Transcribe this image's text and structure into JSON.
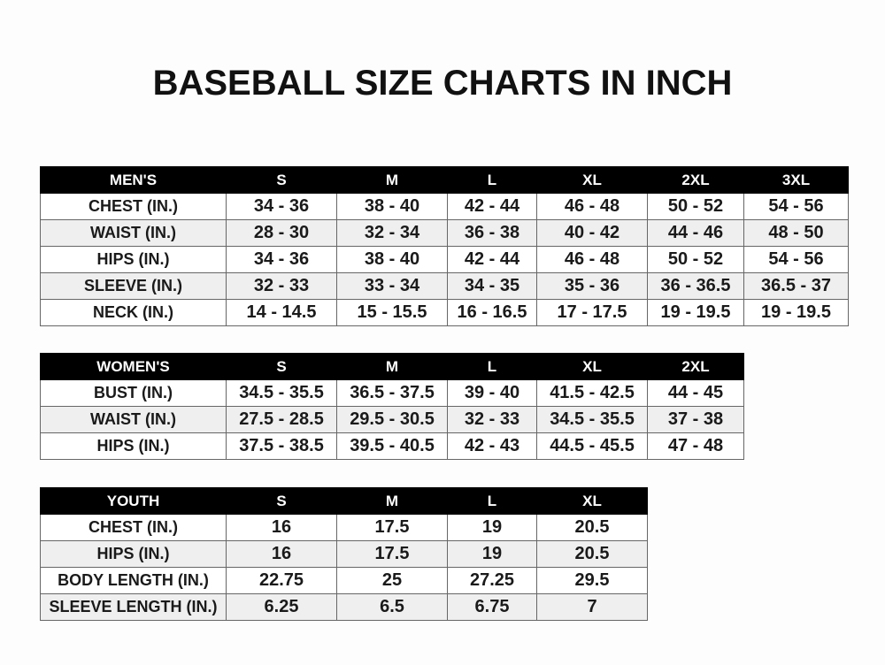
{
  "title": "BASEBALL SIZE CHARTS IN INCH",
  "tables": [
    {
      "id": "men",
      "headers": [
        "MEN'S",
        "S",
        "M",
        "L",
        "XL",
        "2XL",
        "3XL"
      ],
      "rows": [
        [
          "CHEST (IN.)",
          "34 - 36",
          "38 - 40",
          "42 - 44",
          "46 - 48",
          "50 - 52",
          "54 - 56"
        ],
        [
          "WAIST (IN.)",
          "28 - 30",
          "32 - 34",
          "36 - 38",
          "40 - 42",
          "44 - 46",
          "48 - 50"
        ],
        [
          "HIPS (IN.)",
          "34 - 36",
          "38 - 40",
          "42 - 44",
          "46 - 48",
          "50 - 52",
          "54 - 56"
        ],
        [
          "SLEEVE (IN.)",
          "32 - 33",
          "33 - 34",
          "34 - 35",
          "35 - 36",
          "36 - 36.5",
          "36.5 - 37"
        ],
        [
          "NECK (IN.)",
          "14 - 14.5",
          "15 - 15.5",
          "16 - 16.5",
          "17 - 17.5",
          "19 - 19.5",
          "19 - 19.5"
        ]
      ]
    },
    {
      "id": "women",
      "headers": [
        "WOMEN'S",
        "S",
        "M",
        "L",
        "XL",
        "2XL"
      ],
      "rows": [
        [
          "BUST (IN.)",
          "34.5 - 35.5",
          "36.5 - 37.5",
          "39 - 40",
          "41.5 - 42.5",
          "44 - 45"
        ],
        [
          "WAIST (IN.)",
          "27.5 - 28.5",
          "29.5 - 30.5",
          "32 - 33",
          "34.5 - 35.5",
          "37 - 38"
        ],
        [
          "HIPS (IN.)",
          "37.5 - 38.5",
          "39.5 - 40.5",
          "42 - 43",
          "44.5 - 45.5",
          "47 - 48"
        ]
      ]
    },
    {
      "id": "youth",
      "headers": [
        "YOUTH",
        "S",
        "M",
        "L",
        "XL"
      ],
      "rows": [
        [
          "CHEST (IN.)",
          "16",
          "17.5",
          "19",
          "20.5"
        ],
        [
          "HIPS (IN.)",
          "16",
          "17.5",
          "19",
          "20.5"
        ],
        [
          "BODY LENGTH (IN.)",
          "22.75",
          "25",
          "27.25",
          "29.5"
        ],
        [
          "SLEEVE LENGTH (IN.)",
          "6.25",
          "6.5",
          "6.75",
          "7"
        ]
      ]
    }
  ]
}
